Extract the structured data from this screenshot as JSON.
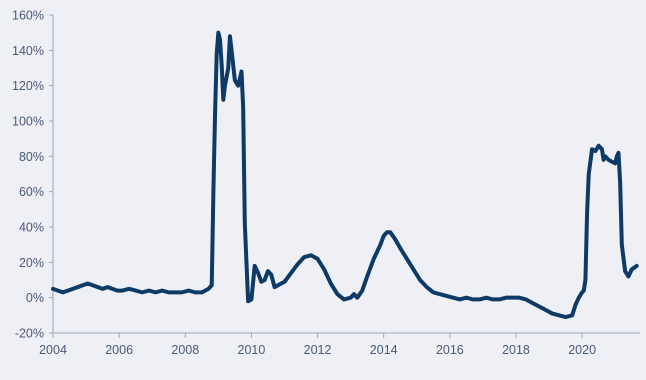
{
  "chart_data": {
    "type": "line",
    "title": "",
    "xlabel": "",
    "ylabel": "",
    "xlim": [
      2004,
      2021.75
    ],
    "ylim": [
      -20,
      160
    ],
    "x_ticks": [
      2004,
      2006,
      2008,
      2010,
      2012,
      2014,
      2016,
      2018,
      2020
    ],
    "x_tick_labels": [
      "2004",
      "2006",
      "2008",
      "2010",
      "2012",
      "2014",
      "2016",
      "2018",
      "2020"
    ],
    "y_ticks": [
      -20,
      0,
      20,
      40,
      60,
      80,
      100,
      120,
      140,
      160
    ],
    "y_tick_labels": [
      "-20%",
      "0%",
      "20%",
      "40%",
      "60%",
      "80%",
      "100%",
      "120%",
      "140%",
      "160%"
    ],
    "grid": false,
    "legend": "none",
    "line_color": "#0d3a66",
    "series": [
      {
        "values": [
          [
            2004.0,
            5
          ],
          [
            2004.15,
            4
          ],
          [
            2004.3,
            3
          ],
          [
            2004.45,
            4
          ],
          [
            2004.6,
            5
          ],
          [
            2004.75,
            6
          ],
          [
            2004.9,
            7
          ],
          [
            2005.05,
            8
          ],
          [
            2005.2,
            7
          ],
          [
            2005.35,
            6
          ],
          [
            2005.5,
            5
          ],
          [
            2005.65,
            6
          ],
          [
            2005.8,
            5
          ],
          [
            2005.95,
            4
          ],
          [
            2006.1,
            4
          ],
          [
            2006.3,
            5
          ],
          [
            2006.5,
            4
          ],
          [
            2006.7,
            3
          ],
          [
            2006.9,
            4
          ],
          [
            2007.1,
            3
          ],
          [
            2007.3,
            4
          ],
          [
            2007.5,
            3
          ],
          [
            2007.7,
            3
          ],
          [
            2007.9,
            3
          ],
          [
            2008.1,
            4
          ],
          [
            2008.3,
            3
          ],
          [
            2008.5,
            3
          ],
          [
            2008.6,
            4
          ],
          [
            2008.7,
            5
          ],
          [
            2008.8,
            7
          ],
          [
            2008.85,
            60
          ],
          [
            2008.9,
            104
          ],
          [
            2008.95,
            138
          ],
          [
            2009.0,
            150
          ],
          [
            2009.05,
            146
          ],
          [
            2009.1,
            132
          ],
          [
            2009.15,
            112
          ],
          [
            2009.2,
            120
          ],
          [
            2009.3,
            130
          ],
          [
            2009.35,
            148
          ],
          [
            2009.4,
            140
          ],
          [
            2009.5,
            123
          ],
          [
            2009.6,
            120
          ],
          [
            2009.7,
            128
          ],
          [
            2009.75,
            108
          ],
          [
            2009.8,
            42
          ],
          [
            2009.85,
            20
          ],
          [
            2009.9,
            -2
          ],
          [
            2010.0,
            -1
          ],
          [
            2010.1,
            18
          ],
          [
            2010.2,
            14
          ],
          [
            2010.3,
            9
          ],
          [
            2010.4,
            10
          ],
          [
            2010.5,
            15
          ],
          [
            2010.6,
            13
          ],
          [
            2010.7,
            6
          ],
          [
            2010.8,
            7
          ],
          [
            2010.9,
            8
          ],
          [
            2011.0,
            9
          ],
          [
            2011.2,
            14
          ],
          [
            2011.4,
            19
          ],
          [
            2011.6,
            23
          ],
          [
            2011.8,
            24
          ],
          [
            2012.0,
            22
          ],
          [
            2012.2,
            16
          ],
          [
            2012.4,
            8
          ],
          [
            2012.6,
            2
          ],
          [
            2012.8,
            -1
          ],
          [
            2013.0,
            0
          ],
          [
            2013.1,
            2
          ],
          [
            2013.2,
            0
          ],
          [
            2013.35,
            4
          ],
          [
            2013.5,
            12
          ],
          [
            2013.7,
            22
          ],
          [
            2013.9,
            30
          ],
          [
            2014.0,
            35
          ],
          [
            2014.1,
            37
          ],
          [
            2014.2,
            37
          ],
          [
            2014.35,
            33
          ],
          [
            2014.5,
            28
          ],
          [
            2014.7,
            22
          ],
          [
            2014.9,
            16
          ],
          [
            2015.1,
            10
          ],
          [
            2015.3,
            6
          ],
          [
            2015.5,
            3
          ],
          [
            2015.7,
            2
          ],
          [
            2015.9,
            1
          ],
          [
            2016.1,
            0
          ],
          [
            2016.3,
            -1
          ],
          [
            2016.5,
            0
          ],
          [
            2016.7,
            -1
          ],
          [
            2016.9,
            -1
          ],
          [
            2017.1,
            0
          ],
          [
            2017.3,
            -1
          ],
          [
            2017.5,
            -1
          ],
          [
            2017.7,
            0
          ],
          [
            2017.9,
            0
          ],
          [
            2018.1,
            0
          ],
          [
            2018.3,
            -1
          ],
          [
            2018.5,
            -3
          ],
          [
            2018.7,
            -5
          ],
          [
            2018.9,
            -7
          ],
          [
            2019.1,
            -9
          ],
          [
            2019.3,
            -10
          ],
          [
            2019.5,
            -11
          ],
          [
            2019.7,
            -10
          ],
          [
            2019.8,
            -4
          ],
          [
            2019.9,
            0
          ],
          [
            2020.0,
            3
          ],
          [
            2020.05,
            4
          ],
          [
            2020.1,
            10
          ],
          [
            2020.15,
            48
          ],
          [
            2020.2,
            70
          ],
          [
            2020.3,
            84
          ],
          [
            2020.4,
            83
          ],
          [
            2020.5,
            86
          ],
          [
            2020.6,
            84
          ],
          [
            2020.65,
            78
          ],
          [
            2020.7,
            80
          ],
          [
            2020.8,
            78
          ],
          [
            2020.9,
            77
          ],
          [
            2021.0,
            76
          ],
          [
            2021.05,
            80
          ],
          [
            2021.1,
            82
          ],
          [
            2021.15,
            65
          ],
          [
            2021.2,
            30
          ],
          [
            2021.3,
            15
          ],
          [
            2021.4,
            12
          ],
          [
            2021.5,
            16
          ],
          [
            2021.65,
            18
          ]
        ]
      }
    ]
  }
}
